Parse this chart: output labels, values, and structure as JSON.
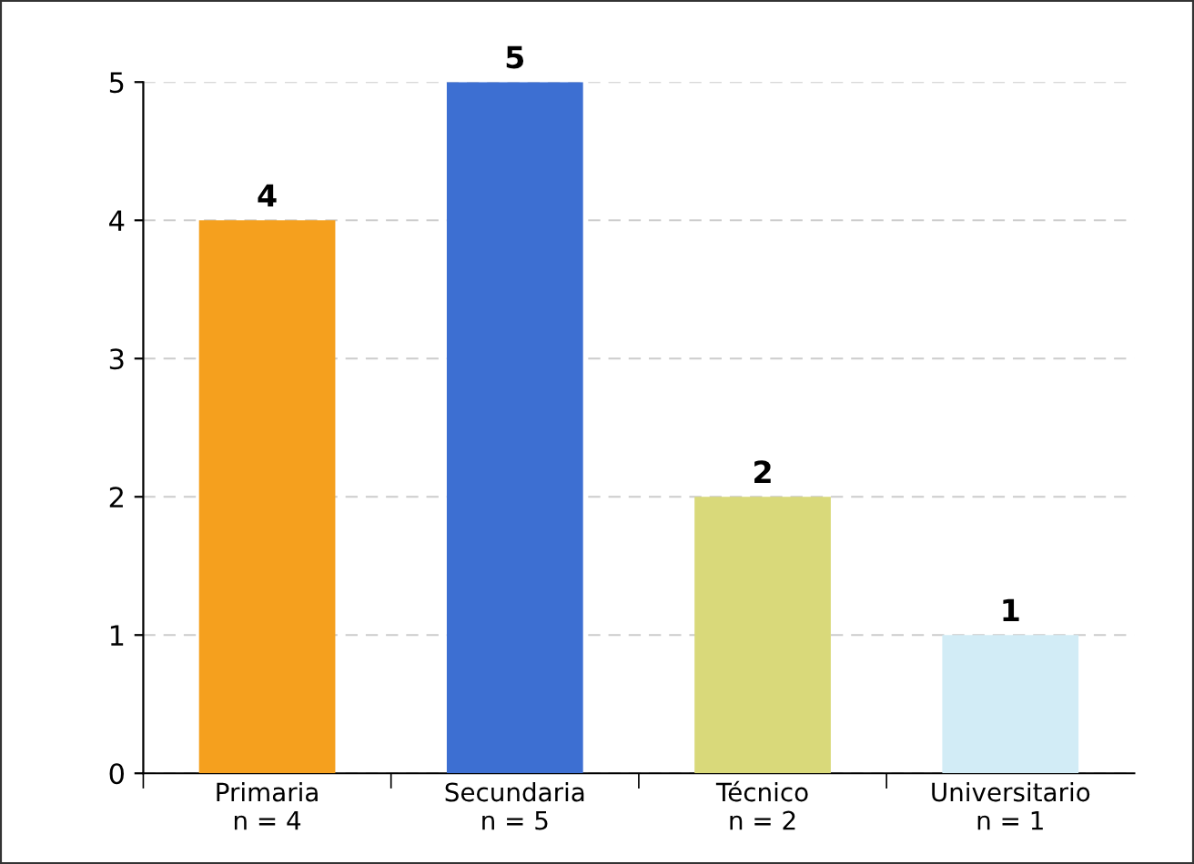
{
  "chart_data": {
    "type": "bar",
    "categories": [
      "Primaria\nn = 4",
      "Secundaria\nn = 5",
      "Técnico\nn = 2",
      "Universitario\nn = 1"
    ],
    "values": [
      4,
      5,
      2,
      1
    ],
    "colors": [
      "#f5a01e",
      "#3d6fd2",
      "#d9d97a",
      "#d2ecf6"
    ],
    "ylim": [
      0,
      5
    ],
    "yticks": [
      0,
      1,
      2,
      3,
      4,
      5
    ],
    "grid": "y",
    "data_labels": true
  }
}
